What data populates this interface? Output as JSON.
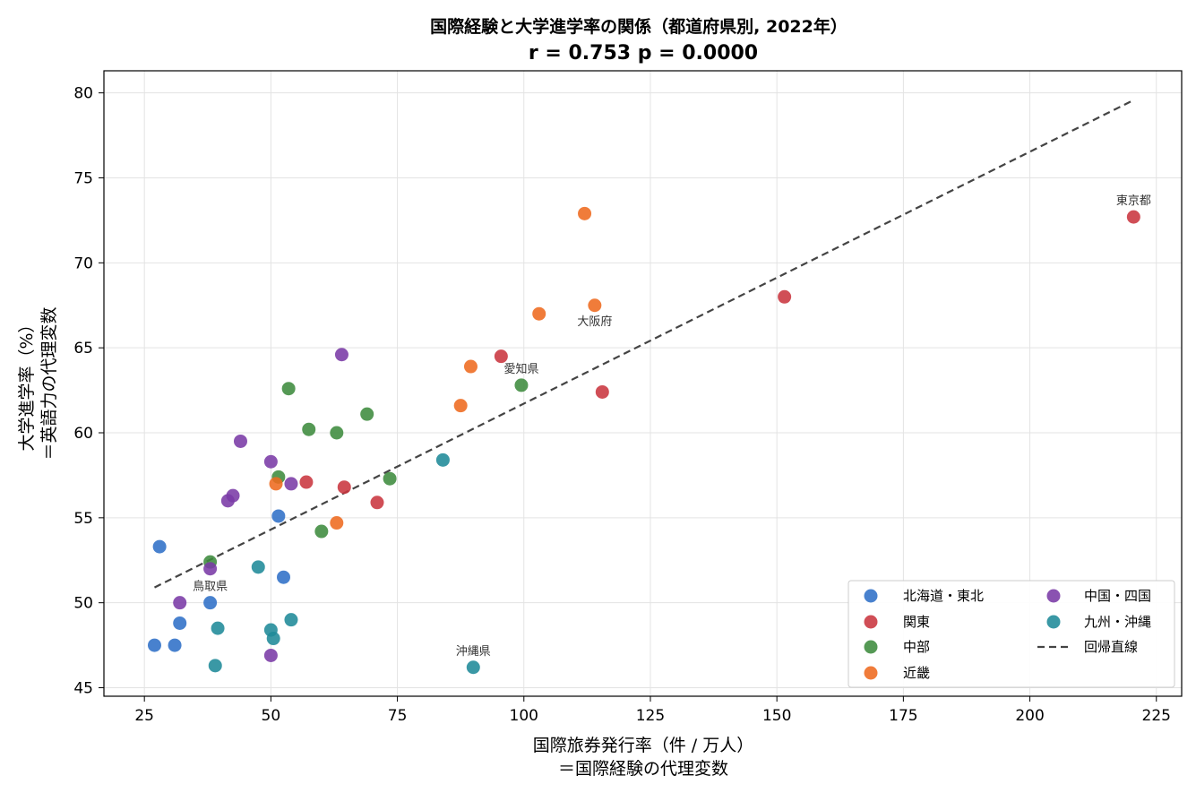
{
  "chart_data": {
    "type": "scatter",
    "title": "国際経験と大学進学率の関係（都道府県別, 2022年）",
    "subtitle": "r = 0.753  p = 0.0000",
    "xlabel": [
      "国際旅券発行率（件 / 万人）",
      "＝国際経験の代理変数"
    ],
    "ylabel": [
      "大学進学率（%）",
      "＝英語力の代理変数"
    ],
    "xlim": [
      17,
      230
    ],
    "ylim": [
      44.5,
      81.3
    ],
    "xticks": [
      25,
      50,
      75,
      100,
      125,
      150,
      175,
      200,
      225
    ],
    "yticks": [
      45,
      50,
      55,
      60,
      65,
      70,
      75,
      80
    ],
    "grid": true,
    "legend_position": "lower-right",
    "series": [
      {
        "name": "北海道・東北",
        "color": "#2f6fc7",
        "points": [
          [
            28,
            53.3
          ],
          [
            27,
            47.5
          ],
          [
            31,
            47.5
          ],
          [
            32,
            48.8
          ],
          [
            38,
            50.0
          ],
          [
            51.5,
            55.1
          ],
          [
            52.5,
            51.5
          ]
        ]
      },
      {
        "name": "関東",
        "color": "#c9353f",
        "points": [
          [
            220.5,
            72.7
          ],
          [
            151.5,
            68.0
          ],
          [
            115.5,
            62.4
          ],
          [
            95.5,
            64.5
          ],
          [
            71,
            55.9
          ],
          [
            64.5,
            56.8
          ],
          [
            57,
            57.1
          ]
        ]
      },
      {
        "name": "中部",
        "color": "#3d8b3d",
        "points": [
          [
            38,
            52.4
          ],
          [
            51.5,
            57.4
          ],
          [
            53.5,
            62.6
          ],
          [
            57.5,
            60.2
          ],
          [
            60,
            54.2
          ],
          [
            63,
            60.0
          ],
          [
            69,
            61.1
          ],
          [
            73.5,
            57.3
          ],
          [
            99.5,
            62.8
          ]
        ]
      },
      {
        "name": "近畿",
        "color": "#ee6a1f",
        "points": [
          [
            51,
            57.0
          ],
          [
            63,
            54.7
          ],
          [
            87.5,
            61.6
          ],
          [
            89.5,
            63.9
          ],
          [
            103,
            67.0
          ],
          [
            112,
            72.9
          ],
          [
            114,
            67.5
          ]
        ]
      },
      {
        "name": "中国・四国",
        "color": "#7a3aa6",
        "points": [
          [
            32,
            50.0
          ],
          [
            38,
            52.0
          ],
          [
            41.5,
            56.0
          ],
          [
            42.5,
            56.3
          ],
          [
            44,
            59.5
          ],
          [
            50,
            58.3
          ],
          [
            50,
            46.9
          ],
          [
            54,
            57.0
          ],
          [
            64,
            64.6
          ]
        ]
      },
      {
        "name": "九州・沖縄",
        "color": "#1f8a99",
        "points": [
          [
            39,
            46.3
          ],
          [
            39.5,
            48.5
          ],
          [
            47.5,
            52.1
          ],
          [
            50,
            48.4
          ],
          [
            50.5,
            47.9
          ],
          [
            54,
            49.0
          ],
          [
            84,
            58.4
          ],
          [
            90,
            46.2
          ]
        ]
      }
    ],
    "regression": {
      "name": "回帰直線",
      "color": "#444444",
      "points": [
        [
          27,
          50.9
        ],
        [
          220,
          79.5
        ]
      ]
    },
    "annotations": [
      {
        "text": "東京都",
        "x": 220.5,
        "y": 72.7,
        "place": "above"
      },
      {
        "text": "大阪府",
        "x": 114,
        "y": 67.5,
        "place": "below"
      },
      {
        "text": "愛知県",
        "x": 99.5,
        "y": 62.8,
        "place": "above"
      },
      {
        "text": "鳥取県",
        "x": 38,
        "y": 50.0,
        "place": "above"
      },
      {
        "text": "沖縄県",
        "x": 90,
        "y": 46.2,
        "place": "above"
      }
    ]
  }
}
